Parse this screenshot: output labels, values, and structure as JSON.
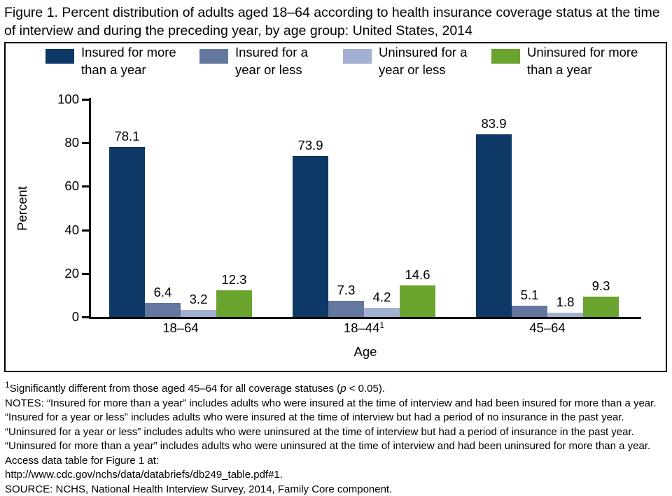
{
  "title": "Figure 1. Percent distribution of adults aged 18–64 according to health insurance coverage status at the time of interview and during the preceding year, by age group: United States, 2014",
  "chart_data": {
    "type": "bar",
    "title": "Figure 1. Percent distribution of adults aged 18–64 according to health insurance coverage status at the time of interview and during the preceding year, by age group: United States, 2014",
    "categories": [
      "18–64",
      "18–44",
      "45–64"
    ],
    "category_superscripts": [
      "",
      "1",
      ""
    ],
    "series": [
      {
        "name": "Insured for more than a year",
        "color": "#0e3866",
        "values": [
          78.1,
          73.9,
          83.9
        ]
      },
      {
        "name": "Insured for a year or less",
        "color": "#64779f",
        "values": [
          6.4,
          7.3,
          5.1
        ]
      },
      {
        "name": "Uninsured for a year or less",
        "color": "#a4b0d1",
        "values": [
          3.2,
          4.2,
          1.8
        ]
      },
      {
        "name": "Uninsured for more than a year",
        "color": "#6ba32f",
        "values": [
          12.3,
          14.6,
          9.3
        ]
      }
    ],
    "xlabel": "Age",
    "ylabel": "Percent",
    "ylim": [
      0,
      100
    ],
    "yticks": [
      0,
      20,
      40,
      60,
      80,
      100
    ],
    "legend_position": "top",
    "grid": false,
    "axis_color": "#000000",
    "text_color": "#000000"
  },
  "footnotes": {
    "footnote1": {
      "sup": "1",
      "pre": "Significantly different from those aged 45–64 for all coverage statuses (",
      "italic": "p",
      "post": " < 0.05)."
    },
    "notes": "NOTES: “Insured for more than a year” includes adults who were insured at the time of interview and had been insured for more than a year. “Insured for a year or less” includes adults who were insured at the time of interview but had a period of no insurance in the past year. “Uninsured for a year or less” includes adults who were uninsured at the time of interview but had a period of insurance in the past year. “Uninsured for more than a year” includes adults who were uninsured at the time of interview and had been uninsured for more than a year. Access data table for Figure 1 at:",
    "url": "http://www.cdc.gov/nchs/data/databriefs/db249_table.pdf#1.",
    "source": "SOURCE: NCHS, National Health Interview Survey, 2014, Family Core component."
  }
}
